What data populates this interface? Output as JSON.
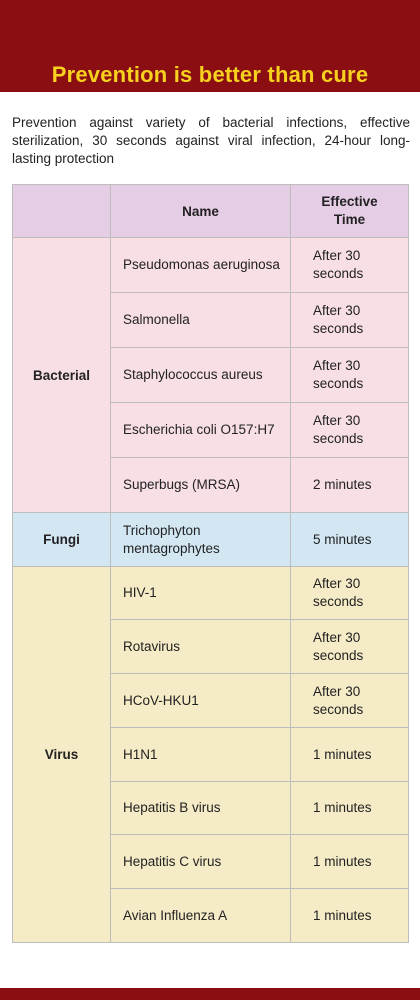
{
  "header": {
    "title": "Prevention is better than cure"
  },
  "intro": "Prevention against variety of bacterial infections, effective sterilization, 30 seconds against viral infection, 24-hour long-lasting protection",
  "table": {
    "columns": [
      "",
      "Name",
      "Effective Time"
    ],
    "groups": [
      {
        "category": "Bacterial",
        "color": "#f7dfe5",
        "rows": [
          {
            "name": "Pseudomonas aeruginosa",
            "time": "After 30 seconds"
          },
          {
            "name": "Salmonella",
            "time": "After 30 seconds"
          },
          {
            "name": "Staphylococcus aureus",
            "time": "After 30 seconds"
          },
          {
            "name": "Escherichia coli O157:H7",
            "time": "After 30 seconds"
          },
          {
            "name": "Superbugs (MRSA)",
            "time": "2 minutes"
          }
        ]
      },
      {
        "category": "Fungi",
        "color": "#d3e7f3",
        "rows": [
          {
            "name": "Trichophyton mentagrophytes",
            "time": "5 minutes"
          }
        ]
      },
      {
        "category": "Virus",
        "color": "#f5ebc6",
        "rows": [
          {
            "name": "HIV-1",
            "time": "After 30 seconds"
          },
          {
            "name": "Rotavirus",
            "time": "After 30 seconds"
          },
          {
            "name": "HCoV-HKU1",
            "time": "After 30 seconds"
          },
          {
            "name": "H1N1",
            "time": "1 minutes"
          },
          {
            "name": "Hepatitis B virus",
            "time": "1 minutes"
          },
          {
            "name": "Hepatitis C virus",
            "time": "1 minutes"
          },
          {
            "name": "Avian Influenza A",
            "time": "1 minutes"
          }
        ]
      }
    ]
  },
  "colors": {
    "header": "#8a0e12",
    "title": "#f6d21f",
    "table_header": "#e6cde6"
  }
}
